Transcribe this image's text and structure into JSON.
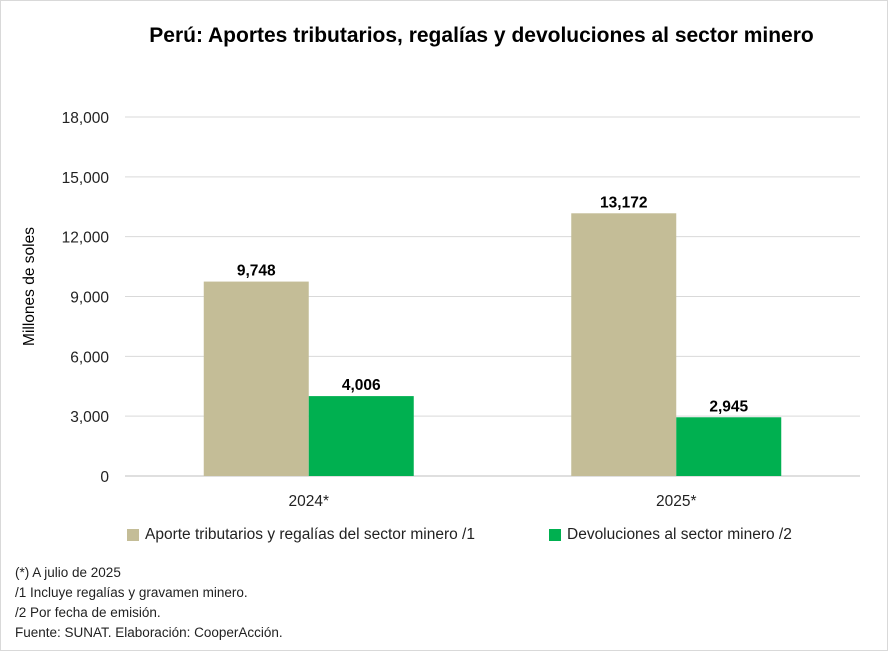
{
  "chart_data": {
    "type": "bar",
    "title": "Perú: Aportes tributarios, regalías y devoluciones al sector minero",
    "ylabel": "Millones de soles",
    "xlabel": "",
    "categories": [
      "2024*",
      "2025*"
    ],
    "ylim": [
      0,
      18000
    ],
    "yticks": [
      0,
      3000,
      6000,
      9000,
      12000,
      15000,
      18000
    ],
    "ytick_labels": [
      "0",
      "3,000",
      "6,000",
      "9,000",
      "12,000",
      "15,000",
      "18,000"
    ],
    "grid": true,
    "legend_position": "bottom",
    "series": [
      {
        "name": "Aporte tributarios y regalías del sector minero /1",
        "values": [
          9748,
          13172
        ],
        "labels": [
          "9,748",
          "13,172"
        ],
        "color": "#c4bd97"
      },
      {
        "name": "Devoluciones al sector minero /2",
        "values": [
          4006,
          2945
        ],
        "labels": [
          "4,006",
          "2,945"
        ],
        "color": "#00b050"
      }
    ]
  },
  "notes": [
    "(*) A julio de 2025",
    "/1 Incluye regalías y gravamen minero.",
    "/2 Por fecha de emisión.",
    "Fuente: SUNAT. Elaboración: CooperAcción."
  ]
}
